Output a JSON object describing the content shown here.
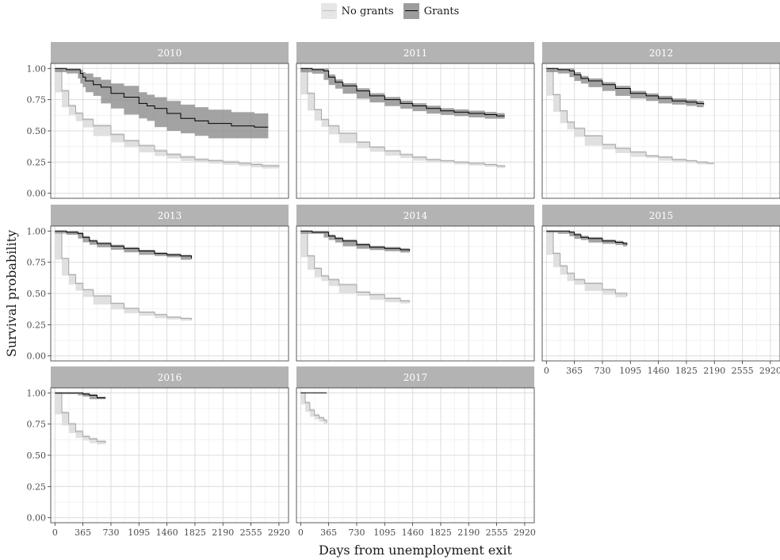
{
  "legend": {
    "items": [
      {
        "label": "No grants",
        "fill": "#e6e6e6",
        "line": "#bdbdbd"
      },
      {
        "label": "Grants",
        "fill": "#9c9c9c",
        "line": "#000000"
      }
    ]
  },
  "chart_data": {
    "type": "line",
    "xlabel": "Days from unemployment exit",
    "ylabel": "Survival probability",
    "xlim": [
      -55,
      3045
    ],
    "ylim": [
      -0.04,
      1.04
    ],
    "x_ticks": [
      0,
      365,
      730,
      1095,
      1460,
      1825,
      2190,
      2555,
      2920
    ],
    "y_ticks": [
      0.0,
      0.25,
      0.5,
      0.75,
      1.0
    ],
    "y_tick_labels": [
      "0.00",
      "0.25",
      "0.50",
      "0.75",
      "1.00"
    ],
    "grid": true,
    "legend_position": "top",
    "colors": {
      "strip": "#b3b3b3",
      "strip_text": "#ffffff",
      "grid": "#ebebeb",
      "border": "#333333"
    },
    "panels": [
      {
        "year": "2010",
        "series": [
          {
            "name": "No grants",
            "x": [
              0,
              90,
              180,
              270,
              365,
              500,
              730,
              900,
              1095,
              1300,
              1460,
              1640,
              1825,
              2000,
              2190,
              2400,
              2555,
              2700,
              2920
            ],
            "y": [
              1.0,
              0.82,
              0.7,
              0.64,
              0.59,
              0.54,
              0.47,
              0.42,
              0.38,
              0.34,
              0.31,
              0.29,
              0.27,
              0.26,
              0.25,
              0.24,
              0.23,
              0.22,
              0.21
            ],
            "band": 0.012
          },
          {
            "name": "Grants",
            "x": [
              0,
              150,
              300,
              330,
              365,
              400,
              500,
              600,
              730,
              900,
              1095,
              1200,
              1300,
              1460,
              1640,
              1825,
              2000,
              2300,
              2600,
              2780
            ],
            "y": [
              1.0,
              0.99,
              0.99,
              0.96,
              0.93,
              0.9,
              0.87,
              0.85,
              0.8,
              0.77,
              0.72,
              0.7,
              0.68,
              0.64,
              0.6,
              0.58,
              0.56,
              0.54,
              0.53,
              0.53
            ],
            "lower": [
              1.0,
              0.97,
              0.96,
              0.92,
              0.88,
              0.85,
              0.81,
              0.78,
              0.72,
              0.68,
              0.63,
              0.6,
              0.58,
              0.53,
              0.5,
              0.48,
              0.46,
              0.44,
              0.44,
              0.44
            ],
            "upper": [
              1.0,
              1.0,
              1.0,
              0.99,
              0.97,
              0.96,
              0.93,
              0.91,
              0.88,
              0.86,
              0.81,
              0.79,
              0.77,
              0.74,
              0.71,
              0.69,
              0.67,
              0.65,
              0.64,
              0.64
            ]
          }
        ]
      },
      {
        "year": "2011",
        "series": [
          {
            "name": "No grants",
            "x": [
              0,
              90,
              180,
              270,
              365,
              500,
              730,
              900,
              1095,
              1300,
              1460,
              1640,
              1825,
              2000,
              2190,
              2400,
              2555,
              2660
            ],
            "y": [
              1.0,
              0.8,
              0.67,
              0.59,
              0.54,
              0.48,
              0.41,
              0.37,
              0.34,
              0.31,
              0.29,
              0.27,
              0.26,
              0.25,
              0.24,
              0.23,
              0.22,
              0.21
            ],
            "band": 0.008
          },
          {
            "name": "Grants",
            "x": [
              0,
              150,
              300,
              365,
              450,
              550,
              730,
              900,
              1095,
              1300,
              1460,
              1640,
              1825,
              2000,
              2190,
              2400,
              2555,
              2660
            ],
            "y": [
              1.0,
              0.99,
              0.98,
              0.93,
              0.89,
              0.86,
              0.82,
              0.78,
              0.75,
              0.72,
              0.7,
              0.68,
              0.66,
              0.65,
              0.64,
              0.63,
              0.62,
              0.62
            ],
            "band": 0.022
          }
        ]
      },
      {
        "year": "2012",
        "series": [
          {
            "name": "No grants",
            "x": [
              0,
              90,
              180,
              270,
              365,
              500,
              730,
              900,
              1095,
              1300,
              1460,
              1640,
              1825,
              1960,
              2100,
              2190
            ],
            "y": [
              1.0,
              0.79,
              0.66,
              0.57,
              0.52,
              0.46,
              0.39,
              0.36,
              0.33,
              0.3,
              0.29,
              0.27,
              0.26,
              0.25,
              0.24,
              0.24
            ],
            "band": 0.008
          },
          {
            "name": "Grants",
            "x": [
              0,
              150,
              300,
              365,
              450,
              550,
              730,
              900,
              1095,
              1300,
              1460,
              1640,
              1825,
              1960,
              2050
            ],
            "y": [
              1.0,
              0.99,
              0.98,
              0.95,
              0.92,
              0.9,
              0.87,
              0.84,
              0.8,
              0.78,
              0.76,
              0.74,
              0.73,
              0.72,
              0.71
            ],
            "band": 0.02
          }
        ]
      },
      {
        "year": "2013",
        "series": [
          {
            "name": "No grants",
            "x": [
              0,
              90,
              180,
              270,
              365,
              500,
              730,
              900,
              1095,
              1300,
              1460,
              1640,
              1780
            ],
            "y": [
              1.0,
              0.78,
              0.65,
              0.58,
              0.53,
              0.48,
              0.42,
              0.38,
              0.35,
              0.33,
              0.31,
              0.3,
              0.29
            ],
            "band": 0.008
          },
          {
            "name": "Grants",
            "x": [
              0,
              150,
              300,
              365,
              450,
              550,
              730,
              900,
              1095,
              1300,
              1460,
              1640,
              1780
            ],
            "y": [
              1.0,
              0.99,
              0.98,
              0.95,
              0.92,
              0.9,
              0.88,
              0.86,
              0.84,
              0.82,
              0.81,
              0.8,
              0.78
            ],
            "band": 0.01
          }
        ]
      },
      {
        "year": "2014",
        "series": [
          {
            "name": "No grants",
            "x": [
              0,
              90,
              180,
              270,
              365,
              500,
              730,
              900,
              1095,
              1300,
              1420
            ],
            "y": [
              1.0,
              0.8,
              0.7,
              0.64,
              0.61,
              0.57,
              0.51,
              0.49,
              0.46,
              0.44,
              0.43
            ],
            "band": 0.01
          },
          {
            "name": "Grants",
            "x": [
              0,
              150,
              300,
              365,
              450,
              550,
              730,
              900,
              1095,
              1300,
              1420
            ],
            "y": [
              1.0,
              0.99,
              0.99,
              0.96,
              0.94,
              0.92,
              0.89,
              0.87,
              0.86,
              0.85,
              0.84
            ],
            "band": 0.012
          }
        ]
      },
      {
        "year": "2015",
        "series": [
          {
            "name": "No grants",
            "x": [
              0,
              90,
              180,
              270,
              365,
              500,
              730,
              900,
              1050
            ],
            "y": [
              1.0,
              0.82,
              0.72,
              0.66,
              0.61,
              0.58,
              0.53,
              0.5,
              0.48
            ],
            "band": 0.01
          },
          {
            "name": "Grants",
            "x": [
              0,
              150,
              300,
              365,
              450,
              550,
              730,
              900,
              1000,
              1050
            ],
            "y": [
              1.0,
              1.0,
              0.99,
              0.97,
              0.95,
              0.94,
              0.92,
              0.91,
              0.9,
              0.89
            ],
            "band": 0.012
          }
        ]
      },
      {
        "year": "2016",
        "series": [
          {
            "name": "No grants",
            "x": [
              0,
              90,
              180,
              270,
              365,
              450,
              550,
              660
            ],
            "y": [
              1.0,
              0.84,
              0.75,
              0.69,
              0.65,
              0.63,
              0.61,
              0.6
            ],
            "band": 0.012
          },
          {
            "name": "Grants",
            "x": [
              0,
              150,
              300,
              365,
              450,
              550,
              660
            ],
            "y": [
              1.0,
              1.0,
              1.0,
              0.99,
              0.98,
              0.96,
              0.96
            ],
            "band": 0.01
          }
        ]
      },
      {
        "year": "2017",
        "series": [
          {
            "name": "No grants",
            "x": [
              0,
              60,
              120,
              180,
              240,
              300,
              340
            ],
            "y": [
              1.0,
              0.92,
              0.86,
              0.82,
              0.8,
              0.78,
              0.76
            ],
            "band": 0.012
          },
          {
            "name": "Grants",
            "x": [
              0,
              100,
              200,
              300,
              340
            ],
            "y": [
              1.0,
              1.0,
              1.0,
              1.0,
              1.0
            ],
            "band": 0.0
          }
        ]
      }
    ]
  }
}
